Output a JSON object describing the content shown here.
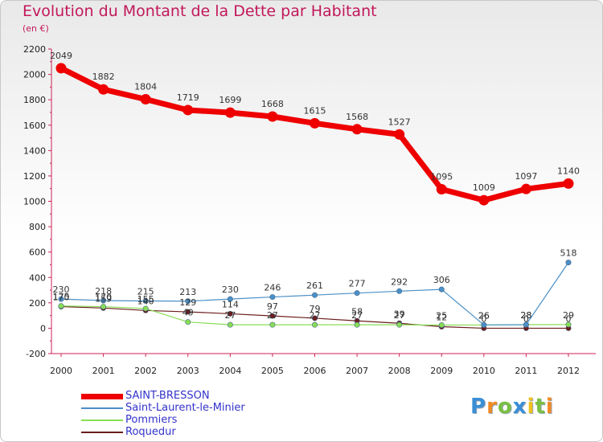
{
  "header": {
    "title": "Evolution du Montant de la Dette par Habitant",
    "unit": "(en €)"
  },
  "logo": {
    "text": "Proxiti",
    "letters": [
      {
        "ch": "P",
        "color": "#3a8ed6"
      },
      {
        "ch": "r",
        "color": "#f08a24"
      },
      {
        "ch": "o",
        "color": "#79c043"
      },
      {
        "ch": "x",
        "color": "#3a8ed6"
      },
      {
        "ch": "i",
        "color": "#f0c020"
      },
      {
        "ch": "t",
        "color": "#79c043"
      },
      {
        "ch": "i",
        "color": "#f08a24"
      }
    ]
  },
  "chart_data": {
    "type": "line",
    "title": "Evolution du Montant de la Dette par Habitant",
    "subtitle": "(en €)",
    "xlabel": "",
    "ylabel": "",
    "x": [
      "2000",
      "2001",
      "2002",
      "2003",
      "2004",
      "2005",
      "2006",
      "2007",
      "2008",
      "2009",
      "2010",
      "2011",
      "2012"
    ],
    "ylim": [
      -200,
      2200
    ],
    "yticks": [
      -200,
      0,
      200,
      400,
      600,
      800,
      1000,
      1200,
      1400,
      1600,
      1800,
      2000,
      2200
    ],
    "grid": false,
    "legend_position": "bottom-left",
    "series": [
      {
        "name": "SAINT-BRESSON",
        "color": "#ee0000",
        "values": [
          2049,
          1882,
          1804,
          1719,
          1699,
          1668,
          1615,
          1568,
          1527,
          1095,
          1009,
          1097,
          1140
        ],
        "labels": [
          "2049",
          "1882",
          "1804",
          "1719",
          "1699",
          "1668",
          "1615",
          "1568",
          "1527",
          "1095",
          "1009",
          "1097",
          "1140"
        ]
      },
      {
        "name": "Saint-Laurent-le-Minier",
        "color": "#4a90c8",
        "values": [
          230,
          218,
          215,
          213,
          230,
          246,
          261,
          277,
          292,
          306,
          26,
          28,
          518
        ],
        "labels": [
          "230",
          "218",
          "215",
          "213",
          "230",
          "246",
          "261",
          "277",
          "292",
          "306",
          "26",
          "28",
          "518"
        ]
      },
      {
        "name": "Pommiers",
        "color": "#88dd55",
        "values": [
          175,
          170,
          155,
          49,
          27,
          27,
          27,
          27,
          27,
          25,
          26,
          28,
          29
        ],
        "labels": [
          "175",
          "170",
          "155",
          "49",
          "27",
          "27",
          "27",
          "27",
          "27",
          "25",
          "26",
          "28",
          "29"
        ]
      },
      {
        "name": "Roquedur",
        "color": "#6b1c1c",
        "values": [
          170,
          159,
          140,
          129,
          114,
          97,
          79,
          58,
          39,
          12,
          0,
          0,
          0
        ],
        "labels": [
          "170",
          "159",
          "140",
          "129",
          "114",
          "97",
          "79",
          "58",
          "39",
          "12",
          "0",
          "0",
          "0"
        ]
      }
    ]
  }
}
